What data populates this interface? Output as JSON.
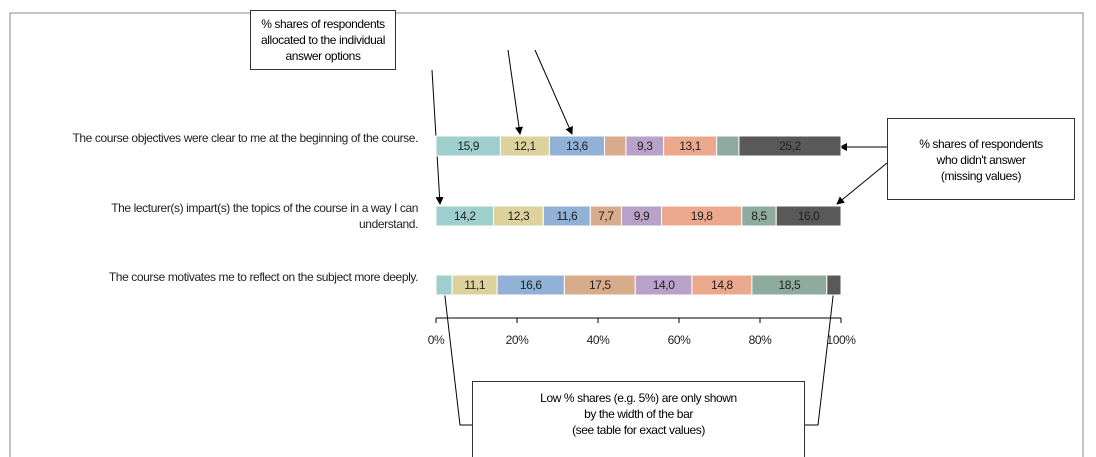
{
  "chart_data": {
    "type": "stacked-bar-horizontal",
    "categories": [
      "The course objectives were clear to me at the beginning of the course.",
      "The lecturer(s) impart(s) the topics of the course in a way I can understand.",
      "The course motivates me to reflect on the subject more deeply."
    ],
    "series": [
      {
        "color": "#9ecfcd",
        "values": [
          15.9,
          14.2,
          4.0
        ],
        "value_labels": [
          "15,9",
          "14,2",
          null
        ]
      },
      {
        "color": "#ddd19c",
        "values": [
          12.1,
          12.3,
          11.1
        ],
        "value_labels": [
          "12,1",
          "12,3",
          "11,1"
        ]
      },
      {
        "color": "#91b2d6",
        "values": [
          13.6,
          11.6,
          16.6
        ],
        "value_labels": [
          "13,6",
          "11,6",
          "16,6"
        ]
      },
      {
        "color": "#d8ab8c",
        "values": [
          5.3,
          7.7,
          17.5
        ],
        "value_labels": [
          null,
          "7,7",
          "17,5"
        ]
      },
      {
        "color": "#b9a2c9",
        "values": [
          9.3,
          9.9,
          14.0
        ],
        "value_labels": [
          "9,3",
          "9,9",
          "14,0"
        ]
      },
      {
        "color": "#eca88c",
        "values": [
          13.1,
          19.8,
          14.8
        ],
        "value_labels": [
          "13,1",
          "19,8",
          "14,8"
        ]
      },
      {
        "color": "#8fab9f",
        "values": [
          5.5,
          8.5,
          18.5
        ],
        "value_labels": [
          null,
          "8,5",
          "18,5"
        ]
      },
      {
        "color": "#595959",
        "values": [
          25.2,
          16.0,
          3.5
        ],
        "value_labels": [
          "25,2",
          "16,0",
          null
        ]
      }
    ],
    "xlim": [
      0,
      100
    ],
    "xticks": [
      {
        "value": 0,
        "label": "0%"
      },
      {
        "value": 20,
        "label": "20%"
      },
      {
        "value": 40,
        "label": "40%"
      },
      {
        "value": 60,
        "label": "60%"
      },
      {
        "value": 80,
        "label": "80%"
      },
      {
        "value": 100,
        "label": "100%"
      }
    ],
    "annotations": [
      "% shares of respondents\nallocated to the individual\nanswer options",
      "% shares of respondents\nwho didn't answer\n(missing values)",
      "Low % shares (e.g. 5%) are only shown\nby the width of the bar\n(see table for exact values)"
    ]
  }
}
